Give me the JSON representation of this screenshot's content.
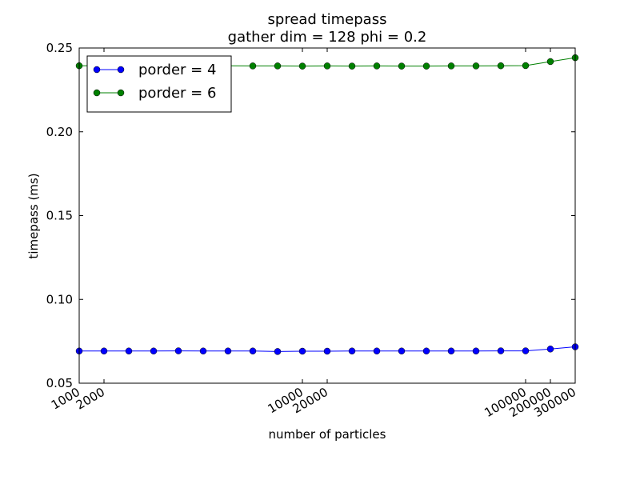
{
  "chart_data": {
    "type": "line",
    "title": "spread timepass",
    "subtitle": "gather dim = 128 phi = 0.2",
    "x_label": "number of particles",
    "y_label": "timepass (ms)",
    "categories": [
      "1000",
      "2000",
      null,
      null,
      null,
      null,
      null,
      null,
      null,
      "10000",
      "20000",
      null,
      null,
      null,
      null,
      null,
      null,
      null,
      "100000",
      "200000",
      "300000"
    ],
    "series": [
      {
        "name": "porder = 4",
        "color": "#0000ff",
        "values": [
          0.0692,
          0.0692,
          0.0692,
          0.0692,
          0.0693,
          0.0692,
          0.0692,
          0.0692,
          0.0689,
          0.0691,
          0.0691,
          0.0692,
          0.0692,
          0.0692,
          0.0692,
          0.0692,
          0.0692,
          0.0693,
          0.0693,
          0.0704,
          0.0717
        ]
      },
      {
        "name": "porder = 6",
        "color": "#008000",
        "values": [
          0.2394,
          0.2395,
          0.2395,
          0.2395,
          0.2395,
          0.2395,
          0.2394,
          0.2393,
          0.2393,
          0.2392,
          0.2393,
          0.2392,
          0.2393,
          0.2392,
          0.2392,
          0.2393,
          0.2393,
          0.2394,
          0.2395,
          0.2419,
          0.2442
        ]
      }
    ],
    "ylim": [
      0.05,
      0.25
    ],
    "yticks": [
      0.05,
      {
        "value": 0.1,
        "label": "0.10"
      },
      0.15,
      {
        "value": 0.2,
        "label": "0.20"
      },
      0.25
    ],
    "legend": "upper left",
    "grid": false
  }
}
